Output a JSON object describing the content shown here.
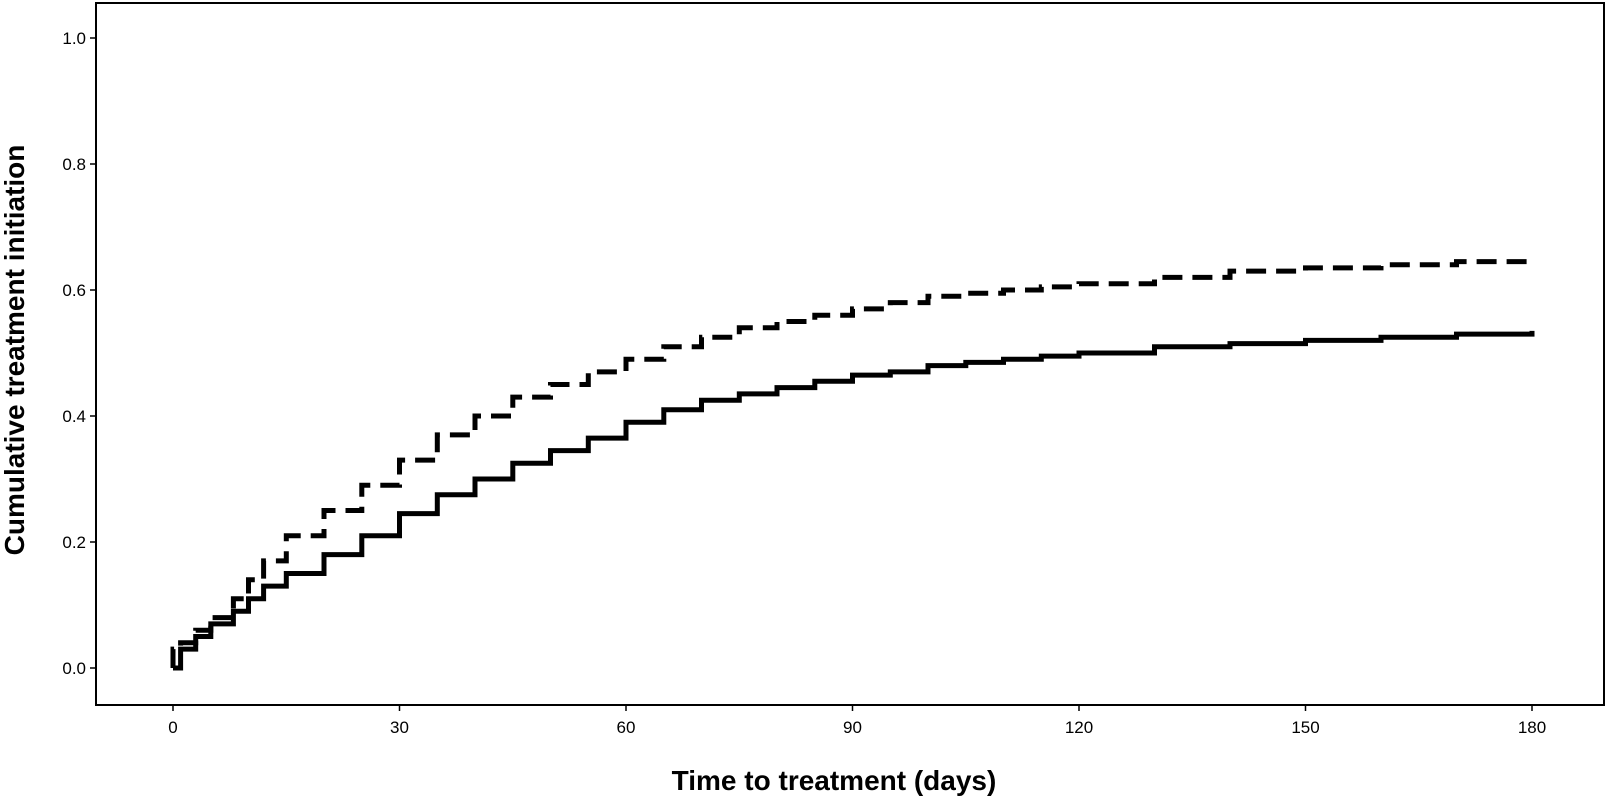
{
  "chart_data": {
    "type": "line",
    "title": "",
    "xlabel": "Time to treatment (days)",
    "ylabel": "Cumulative treatment initiation",
    "xlim": [
      0,
      180
    ],
    "ylim": [
      0,
      1.0
    ],
    "xticks": [
      "0",
      "30",
      "60",
      "90",
      "120",
      "150",
      "180"
    ],
    "yticks": [
      "0.0",
      "0.2",
      "0.4",
      "0.6",
      "0.8",
      "1.0"
    ],
    "grid": false,
    "legend": "none",
    "series": [
      {
        "style": "dashed",
        "color": "#000000",
        "x": [
          0,
          1,
          3,
          5,
          8,
          10,
          12,
          15,
          20,
          25,
          30,
          35,
          40,
          45,
          50,
          55,
          60,
          65,
          70,
          75,
          80,
          85,
          90,
          95,
          100,
          105,
          110,
          115,
          120,
          130,
          140,
          150,
          160,
          170,
          180
        ],
        "y": [
          0.03,
          0.04,
          0.06,
          0.08,
          0.11,
          0.14,
          0.17,
          0.21,
          0.25,
          0.29,
          0.33,
          0.37,
          0.4,
          0.43,
          0.45,
          0.47,
          0.49,
          0.51,
          0.525,
          0.54,
          0.55,
          0.56,
          0.57,
          0.58,
          0.59,
          0.595,
          0.6,
          0.605,
          0.61,
          0.62,
          0.63,
          0.635,
          0.64,
          0.645,
          0.65
        ]
      },
      {
        "style": "solid",
        "color": "#000000",
        "x": [
          0,
          1,
          3,
          5,
          8,
          10,
          12,
          15,
          20,
          25,
          30,
          35,
          40,
          45,
          50,
          55,
          60,
          65,
          70,
          75,
          80,
          85,
          90,
          95,
          100,
          105,
          110,
          115,
          120,
          130,
          140,
          150,
          160,
          170,
          180
        ],
        "y": [
          0.0,
          0.03,
          0.05,
          0.07,
          0.09,
          0.11,
          0.13,
          0.15,
          0.18,
          0.21,
          0.245,
          0.275,
          0.3,
          0.325,
          0.345,
          0.365,
          0.39,
          0.41,
          0.425,
          0.435,
          0.445,
          0.455,
          0.465,
          0.47,
          0.48,
          0.485,
          0.49,
          0.495,
          0.5,
          0.51,
          0.515,
          0.52,
          0.525,
          0.53,
          0.535
        ]
      }
    ]
  }
}
